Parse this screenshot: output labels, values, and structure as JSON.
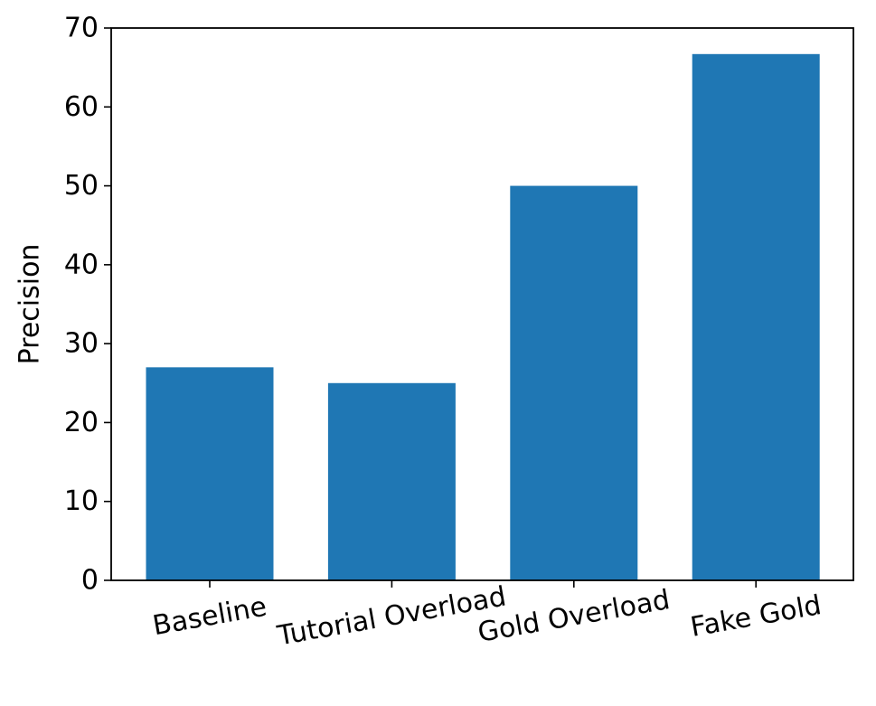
{
  "chart_data": {
    "type": "bar",
    "title": "",
    "xlabel": "",
    "ylabel": "Precision",
    "categories": [
      "Baseline",
      "Tutorial Overload",
      "Gold Overload",
      "Fake Gold"
    ],
    "values": [
      27,
      25,
      50,
      66.7
    ],
    "ylim": [
      0,
      70
    ],
    "yticks": [
      0,
      10,
      20,
      30,
      40,
      50,
      60,
      70
    ],
    "bar_color": "#1f77b4",
    "grid": false,
    "legend": "none",
    "xtick_rotation_deg": -10
  }
}
